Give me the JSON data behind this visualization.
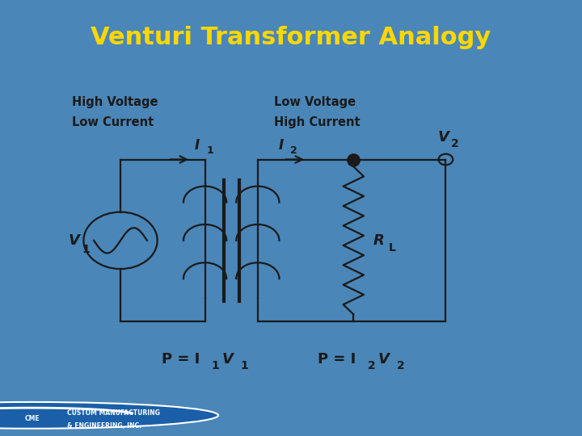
{
  "title": "Venturi Transformer Analogy",
  "title_color": "#FFD700",
  "title_bg": "#2B6CB0",
  "content_bg": "#FFFFFF",
  "outer_bg": "#4A86B8",
  "label_hv": "High Voltage\nLow Current",
  "label_lv": "Low Voltage\nHigh Current",
  "label_I1": "I",
  "label_I1_sub": "1",
  "label_I2": "I",
  "label_I2_sub": "2",
  "label_V1": "V",
  "label_V1_sub": "1",
  "label_V2": "V",
  "label_V2_sub": "2",
  "label_RL": "R",
  "label_RL_sub": "L",
  "label_P1": "P = I",
  "label_P1_sub": "1",
  "label_P1_end": "V",
  "label_P1_vsub": "1",
  "label_P2": "P = I",
  "label_P2_sub": "2",
  "label_P2_end": "V",
  "label_P2_vsub": "2",
  "footer_text": "CUSTOM MANUFACTURING\n& ENGINEERING, INC.",
  "line_color": "#1a1a1a",
  "lw": 1.6
}
